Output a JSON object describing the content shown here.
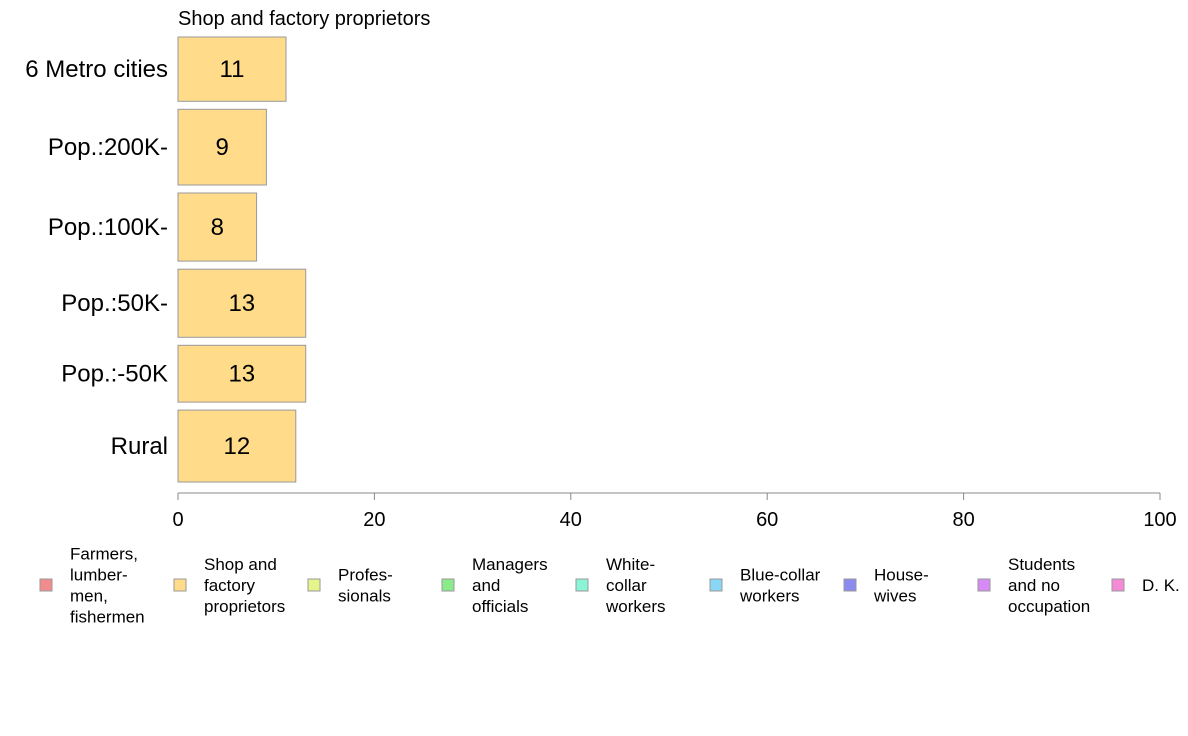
{
  "chart_data": {
    "type": "bar",
    "orientation": "horizontal",
    "panel_title": "Shop and factory proprietors",
    "categories": [
      "6 Metro cities",
      "Pop.:200K-",
      "Pop.:100K-",
      "Pop.:50K-",
      "Pop.:-50K",
      "Rural"
    ],
    "values": [
      11,
      9,
      8,
      13,
      13,
      12
    ],
    "value_labels": [
      "11",
      "9",
      "8",
      "13",
      "13",
      "12"
    ],
    "bar_weights": [
      0.85,
      1.0,
      0.9,
      0.9,
      0.75,
      0.95
    ],
    "xlim": [
      0,
      100
    ],
    "x_ticks": [
      0,
      20,
      40,
      60,
      80,
      100
    ],
    "x_tick_labels": [
      "0",
      "20",
      "40",
      "60",
      "80",
      "100"
    ],
    "bar_color": "#FFDB8A",
    "grid": false,
    "legend_placement": "bottom",
    "legend": [
      {
        "lines": [
          "Farmers,",
          "lumber-",
          "men,",
          "fishermen"
        ],
        "color": "#F28B8B"
      },
      {
        "lines": [
          "Shop and",
          "factory",
          "proprietors"
        ],
        "color": "#FFDB8A"
      },
      {
        "lines": [
          "Profes-",
          "sionals"
        ],
        "color": "#E5F58A"
      },
      {
        "lines": [
          "Managers",
          "and",
          "officials"
        ],
        "color": "#8AEB8A"
      },
      {
        "lines": [
          "White-",
          "collar",
          "workers"
        ],
        "color": "#8AF5D6"
      },
      {
        "lines": [
          "Blue-collar",
          "workers"
        ],
        "color": "#8AD6F5"
      },
      {
        "lines": [
          "House-",
          "wives"
        ],
        "color": "#8A8AF0"
      },
      {
        "lines": [
          "Students",
          "and no",
          "occupation"
        ],
        "color": "#D68AF5"
      },
      {
        "lines": [
          "D. K."
        ],
        "color": "#F58AD6"
      }
    ]
  }
}
